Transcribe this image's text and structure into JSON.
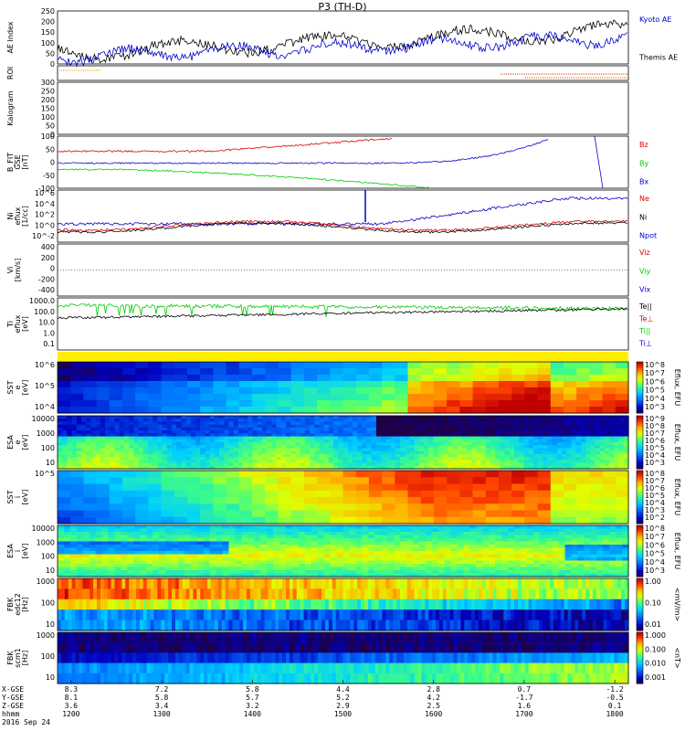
{
  "title": "P3 (TH-D)",
  "colors": {
    "kyoto": "#0000cc",
    "themis": "#000000",
    "red": "#dd0000",
    "green": "#00cc00",
    "blue": "#0000cc"
  },
  "chart_data": [
    {
      "id": "ae",
      "type": "line",
      "ylabel": "AE Index",
      "ylim": [
        0,
        250
      ],
      "yticks": [
        "0",
        "50",
        "100",
        "150",
        "200",
        "250"
      ],
      "series": [
        {
          "name": "Kyoto AE"
        },
        {
          "name": "Themis AE"
        }
      ]
    },
    {
      "id": "roi",
      "type": "line",
      "ylabel": "ROI"
    },
    {
      "id": "kp",
      "type": "line",
      "ylabel": "Kalogram",
      "ylim": [
        0,
        300
      ],
      "yticks": [
        "0",
        "50",
        "100",
        "150",
        "200",
        "250",
        "300"
      ]
    },
    {
      "id": "bfit",
      "type": "line",
      "ylabel": "B_FIT\nGSE\n[nT]",
      "ylim": [
        -100,
        100
      ],
      "yticks": [
        "-100",
        "-50",
        "0",
        "50",
        "100"
      ],
      "series": [
        {
          "name": "Bz"
        },
        {
          "name": "By"
        },
        {
          "name": "Bx"
        }
      ]
    },
    {
      "id": "density",
      "type": "line",
      "ylabel": "Ni\neflux\n[1/cc]",
      "yticks": [
        "10^6",
        "10^4",
        "10^2",
        "10^0",
        "10^-2"
      ],
      "series": [
        {
          "name": "Ne"
        },
        {
          "name": "Ni"
        },
        {
          "name": "Npot"
        }
      ]
    },
    {
      "id": "vi",
      "type": "line",
      "ylabel": "Vi\n[km/s]",
      "ylim": [
        -400,
        400
      ],
      "yticks": [
        "400",
        "200",
        "0",
        "-200",
        "-400"
      ],
      "series": [
        {
          "name": "Viz"
        },
        {
          "name": "Viy"
        },
        {
          "name": "Vix"
        }
      ]
    },
    {
      "id": "temp",
      "type": "line",
      "ylabel": "Ti\neflux\n[eV]",
      "yticks": [
        "1000.0",
        "100.0",
        "10.0",
        "1.0",
        "0.1"
      ],
      "series": [
        {
          "name": "Te||"
        },
        {
          "name": "Te⊥"
        },
        {
          "name": "Ti||"
        },
        {
          "name": "Ti⊥"
        }
      ]
    },
    {
      "id": "sst_e",
      "type": "heatmap",
      "ylabel": "SST\ne\n[eV]",
      "yticks": [
        "10^6",
        "10^5",
        "10^4"
      ],
      "colorbar_label": "Eflux, EFU",
      "colorbar_ticks": [
        "10^8",
        "10^7",
        "10^6",
        "10^5",
        "10^4",
        "10^3"
      ]
    },
    {
      "id": "esa_e",
      "type": "heatmap",
      "ylabel": "ESA\ne\n[eV]",
      "yticks": [
        "10000",
        "1000",
        "100",
        "10"
      ],
      "colorbar_label": "Eflux, EFU",
      "colorbar_ticks": [
        "10^9",
        "10^8",
        "10^7",
        "10^6",
        "10^5",
        "10^4",
        "10^3"
      ]
    },
    {
      "id": "sst_i",
      "type": "heatmap",
      "ylabel": "SST\ni\n[eV]",
      "yticks": [
        "10^5"
      ],
      "colorbar_label": "Eflux, EFU",
      "colorbar_ticks": [
        "10^8",
        "10^7",
        "10^6",
        "10^5",
        "10^4",
        "10^3",
        "10^2"
      ]
    },
    {
      "id": "esa_i",
      "type": "heatmap",
      "ylabel": "ESA\ni\n[eV]",
      "yticks": [
        "10000",
        "1000",
        "100",
        "10"
      ],
      "colorbar_label": "Eflux, EFU",
      "colorbar_ticks": [
        "10^8",
        "10^7",
        "10^6",
        "10^5",
        "10^4",
        "10^3"
      ]
    },
    {
      "id": "fbk_e",
      "type": "heatmap",
      "ylabel": "FBK\nedc12\n[Hz]",
      "yticks": [
        "1000",
        "100",
        "10"
      ],
      "colorbar_label": "<mV/m>",
      "colorbar_ticks": [
        "1.00",
        "0.10",
        "0.01"
      ]
    },
    {
      "id": "fbk_b",
      "type": "heatmap",
      "ylabel": "FBK\nscm1\n[Hz]",
      "yticks": [
        "1000",
        "100",
        "10"
      ],
      "colorbar_label": "<nT>",
      "colorbar_ticks": [
        "1.000",
        "0.100",
        "0.010",
        "0.001"
      ]
    }
  ],
  "footer": {
    "row_labels": [
      "X-GSE",
      "Y-GSE",
      "Z-GSE",
      "hhmm",
      "2016 Sep 24"
    ],
    "columns": [
      {
        "x": "8.3",
        "y": "8.1",
        "z": "3.6",
        "t": "1200"
      },
      {
        "x": "7.2",
        "y": "5.8",
        "z": "3.4",
        "t": "1300"
      },
      {
        "x": "5.8",
        "y": "5.7",
        "z": "3.2",
        "t": "1400"
      },
      {
        "x": "4.4",
        "y": "5.2",
        "z": "2.9",
        "t": "1500"
      },
      {
        "x": "2.8",
        "y": "4.2",
        "z": "2.5",
        "t": "1600"
      },
      {
        "x": "0.7",
        "y": "-1.7",
        "z": "1.6",
        "t": "1700"
      },
      {
        "x": "-1.2",
        "y": "-0.5",
        "z": "0.1",
        "t": "1800"
      }
    ]
  }
}
